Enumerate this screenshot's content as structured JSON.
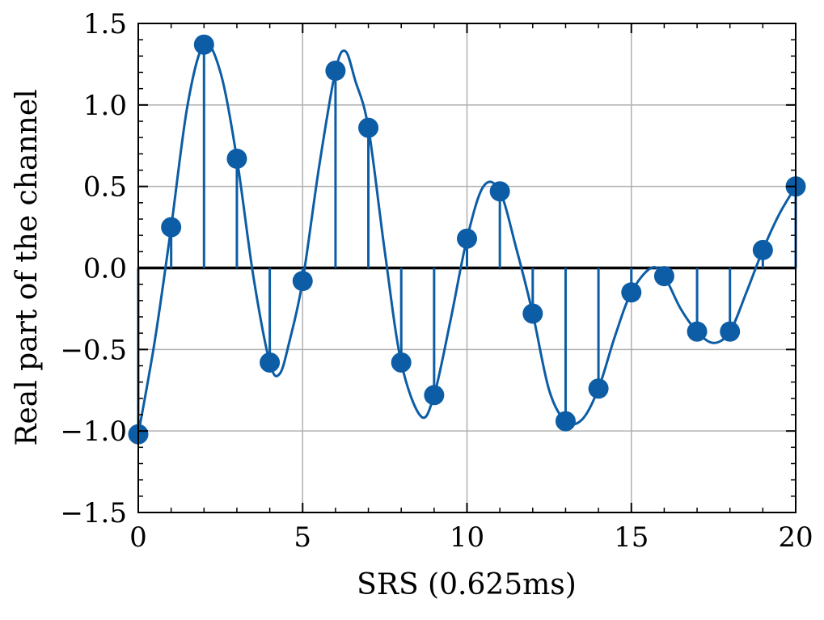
{
  "chart_data": {
    "type": "stem",
    "xlabel": "SRS (0.625ms)",
    "ylabel": "Real part of the channel",
    "xlim": [
      0,
      20
    ],
    "ylim": [
      -1.5,
      1.5
    ],
    "x_ticks": [
      0,
      5,
      10,
      15,
      20
    ],
    "x_tick_labels": [
      "0",
      "5",
      "10",
      "15",
      "20"
    ],
    "y_ticks": [
      -1.5,
      -1.0,
      -0.5,
      0.0,
      0.5,
      1.0,
      1.5
    ],
    "y_tick_labels": [
      "−1.5",
      "−1.0",
      "−0.5",
      "0.0",
      "0.5",
      "1.0",
      "1.5"
    ],
    "grid": true,
    "baseline": 0,
    "color": "#0c5da5",
    "samples": {
      "x": [
        0,
        1,
        2,
        3,
        4,
        5,
        6,
        7,
        8,
        9,
        10,
        11,
        12,
        13,
        14,
        15,
        16,
        17,
        18,
        19,
        20
      ],
      "y": [
        -1.02,
        0.25,
        1.37,
        0.67,
        -0.58,
        -0.08,
        1.21,
        0.86,
        -0.58,
        -0.78,
        0.18,
        0.47,
        -0.28,
        -0.94,
        -0.74,
        -0.15,
        -0.05,
        -0.39,
        -0.39,
        0.11,
        0.5
      ]
    },
    "interpolated_curve": {
      "x": [
        0,
        0.5,
        1,
        1.5,
        2,
        2.5,
        3,
        3.5,
        4,
        4.3,
        4.6,
        5,
        5.5,
        6,
        6.3,
        6.6,
        7,
        7.5,
        8,
        8.6,
        9,
        9.5,
        10,
        10.5,
        11,
        11.5,
        12,
        12.5,
        13,
        13.5,
        14,
        14.5,
        15,
        15.6,
        16,
        16.5,
        17,
        17.5,
        18,
        18.5,
        19,
        19.5,
        20
      ],
      "y": [
        -1.02,
        -0.45,
        0.25,
        1.0,
        1.37,
        1.2,
        0.67,
        -0.05,
        -0.58,
        -0.65,
        -0.45,
        -0.08,
        0.62,
        1.21,
        1.33,
        1.15,
        0.86,
        0.1,
        -0.58,
        -0.91,
        -0.78,
        -0.32,
        0.18,
        0.5,
        0.47,
        0.12,
        -0.28,
        -0.75,
        -0.94,
        -0.93,
        -0.74,
        -0.42,
        -0.15,
        0.0,
        -0.05,
        -0.25,
        -0.39,
        -0.46,
        -0.39,
        -0.15,
        0.11,
        0.33,
        0.5
      ]
    }
  }
}
